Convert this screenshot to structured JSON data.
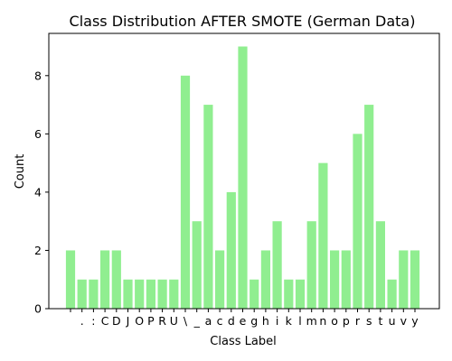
{
  "chart_data": {
    "type": "bar",
    "title": "Class Distribution AFTER SMOTE (German Data)",
    "xlabel": "Class Label",
    "ylabel": "Count",
    "ylim": [
      0,
      9.45
    ],
    "yticks": [
      0,
      2,
      4,
      6,
      8
    ],
    "bar_color": "#90ee90",
    "grid": false,
    "categories": [
      " ",
      ".",
      ":",
      "C",
      "D",
      "J",
      "O",
      "P",
      "R",
      "U",
      "\\",
      "_",
      "a",
      "c",
      "d",
      "e",
      "g",
      "h",
      "i",
      "k",
      "l",
      "m",
      "n",
      "o",
      "p",
      "r",
      "s",
      "t",
      "u",
      "v",
      "y"
    ],
    "values": [
      2,
      1,
      1,
      2,
      2,
      1,
      1,
      1,
      1,
      1,
      8,
      3,
      7,
      2,
      4,
      9,
      1,
      2,
      3,
      1,
      1,
      3,
      5,
      2,
      2,
      6,
      7,
      3,
      1,
      2,
      2
    ]
  }
}
